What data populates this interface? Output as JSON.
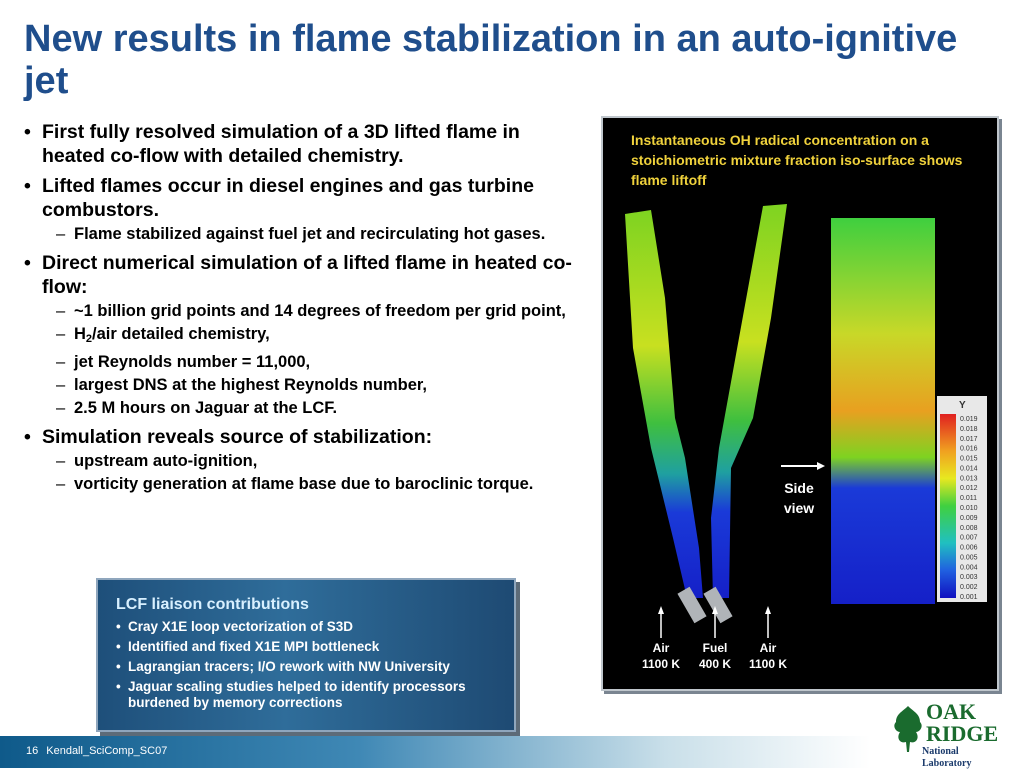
{
  "slide": {
    "title": "New results in flame stabilization in an auto-ignitive jet",
    "bullet_mark": "•",
    "dash_mark": "–"
  },
  "bullets": [
    {
      "text": "First fully resolved simulation of a 3D lifted flame in heated co-flow with detailed chemistry."
    },
    {
      "text": "Lifted flames occur in diesel engines and gas turbine combustors."
    },
    {
      "text": "Flame stabilized against fuel jet and recirculating hot gases."
    },
    {
      "text": "Direct numerical simulation of a lifted flame in heated co-flow:"
    },
    {
      "text": "~1 billion grid points and 14 degrees of freedom per grid point,"
    },
    {
      "h_prefix": "H",
      "h_sub": "2",
      "h_suffix": "/air detailed chemistry,"
    },
    {
      "text": "jet Reynolds number = 11,000,"
    },
    {
      "text": "largest DNS at the highest Reynolds number,"
    },
    {
      "text": "2.5 M hours on Jaguar at the LCF."
    },
    {
      "text": "Simulation reveals source of stabilization:"
    },
    {
      "text": "upstream auto-ignition,"
    },
    {
      "text": "vorticity generation at flame base due to baroclinic torque."
    }
  ],
  "lcf_box": {
    "title": "LCF liaison contributions",
    "items": [
      "Cray X1E loop vectorization of S3D",
      "Identified and fixed X1E MPI bottleneck",
      "Lagrangian tracers; I/O rework with NW University",
      "Jaguar scaling studies helped to identify processors burdened by memory corrections"
    ]
  },
  "figure": {
    "caption": "Instantaneous OH radical concentration on a stoichiometric mixture fraction iso-surface shows flame liftoff",
    "side_view_label": "Side view",
    "inlets": [
      {
        "name": "Air",
        "temp": "1100 K"
      },
      {
        "name": "Fuel",
        "temp": "400 K"
      },
      {
        "name": "Air",
        "temp": "1100 K"
      }
    ],
    "colorbar": {
      "symbol": "Y",
      "ticks": [
        "0.019",
        "0.018",
        "0.017",
        "0.016",
        "0.015",
        "0.014",
        "0.013",
        "0.012",
        "0.011",
        "0.010",
        "0.009",
        "0.008",
        "0.007",
        "0.006",
        "0.005",
        "0.004",
        "0.003",
        "0.002",
        "0.001"
      ]
    }
  },
  "footer": {
    "page_number": "16",
    "label": "Kendall_SciComp_SC07"
  },
  "logo": {
    "line1": "OAK",
    "line2": "RIDGE",
    "line3": "National Laboratory"
  },
  "colors": {
    "title": "#1f4e8c",
    "caption": "#f0d23c",
    "lcf_box_bg": "#2a5f8c",
    "logo_green": "#1a6b2e"
  }
}
